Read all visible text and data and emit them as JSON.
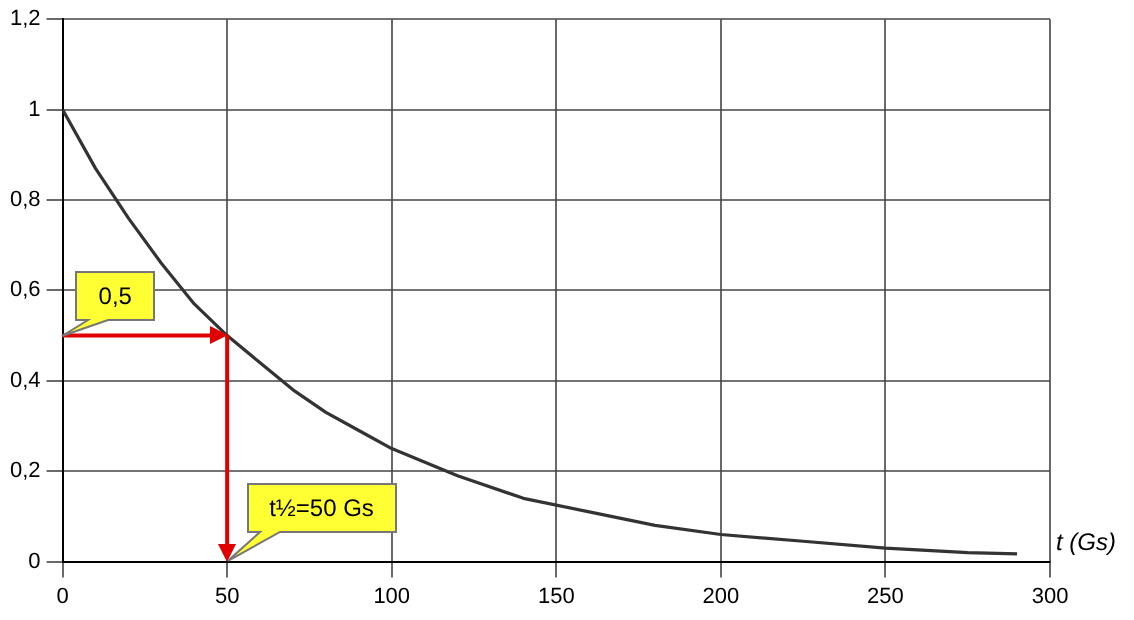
{
  "chart_data": {
    "type": "line",
    "xlabel": "t (Gs)",
    "x": [
      0,
      10,
      20,
      30,
      40,
      50,
      60,
      70,
      80,
      90,
      100,
      120,
      140,
      160,
      180,
      200,
      225,
      250,
      275,
      290
    ],
    "values": [
      1,
      0.87,
      0.76,
      0.66,
      0.57,
      0.5,
      0.44,
      0.38,
      0.33,
      0.29,
      0.25,
      0.19,
      0.14,
      0.11,
      0.08,
      0.06,
      0.045,
      0.03,
      0.02,
      0.017
    ],
    "color": "#333333",
    "xlim": [
      0,
      300
    ],
    "xticks": [
      0,
      50,
      100,
      150,
      200,
      250,
      300
    ],
    "ylim": [
      0,
      1.2
    ],
    "yticks": [
      0,
      {
        "value": 0.2,
        "label": "0,2"
      },
      {
        "value": 0.4,
        "label": "0,4"
      },
      {
        "value": 0.6,
        "label": "0,6"
      },
      {
        "value": 0.8,
        "label": "0,8"
      },
      1,
      {
        "value": 1.2,
        "label": "1,2"
      }
    ],
    "grid": true,
    "legend": false,
    "marker": "none",
    "line_style": "solid",
    "ref_lines": [
      {
        "axis": "y",
        "value": 0.5,
        "label": "0,5",
        "color": "#e00000"
      },
      {
        "axis": "x",
        "value": 50,
        "label": "t½=50 Gs",
        "color": "#e00000"
      }
    ]
  }
}
